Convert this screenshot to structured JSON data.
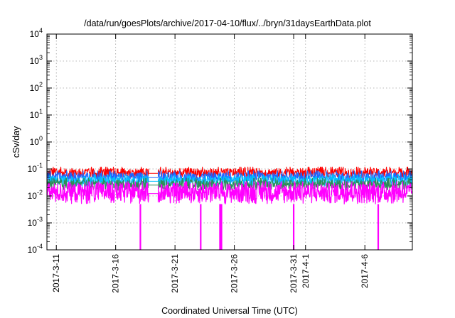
{
  "chart_data": {
    "type": "line",
    "title": "/data/run/goesPlots/archive/2017-04-10/flux/../bryn/31daysEarthData.plot",
    "xlabel": "Coordinated Universal Time (UTC)",
    "ylabel": "cSv/day",
    "y_scale": "log",
    "ylim": [
      0.0001,
      10000
    ],
    "y_ticks": [
      {
        "base": "10",
        "exp": "-4"
      },
      {
        "base": "10",
        "exp": "-3"
      },
      {
        "base": "10",
        "exp": "-2"
      },
      {
        "base": "10",
        "exp": "-1"
      },
      {
        "base": "10",
        "exp": "0"
      },
      {
        "base": "10",
        "exp": "1"
      },
      {
        "base": "10",
        "exp": "2"
      },
      {
        "base": "10",
        "exp": "3"
      },
      {
        "base": "10",
        "exp": "4"
      }
    ],
    "xlim": [
      "2017-03-10T05:00",
      "2017-04-10T00:00"
    ],
    "x_ticks": [
      "2017-3-11",
      "2017-3-16",
      "2017-3-21",
      "2017-3-26",
      "2017-3-31",
      "2017-4-1",
      "2017-4-6"
    ],
    "x_tick_dates": [
      "2017-03-11",
      "2017-03-16",
      "2017-03-21",
      "2017-03-26",
      "2017-03-31",
      "2017-04-01",
      "2017-04-06"
    ],
    "grid": true,
    "data_gap": [
      "2017-03-18T19:00",
      "2017-03-19T14:00"
    ],
    "series": [
      {
        "color": "#ff0000",
        "typical_min": 0.045,
        "typical_max": 0.105
      },
      {
        "color": "#1e64ff",
        "typical_min": 0.03,
        "typical_max": 0.075
      },
      {
        "color": "#00c0ff",
        "typical_min": 0.022,
        "typical_max": 0.055
      },
      {
        "color": "#2e8b57",
        "typical_min": 0.016,
        "typical_max": 0.04
      },
      {
        "color": "#ff00ff",
        "typical_min": 0.005,
        "typical_max": 0.03,
        "dropouts": [
          "2017-03-18T02:00",
          "2017-03-23T04:00",
          "2017-03-24T19:00",
          "2017-03-24T22:00",
          "2017-03-31T00:00",
          "2017-04-07T03:00"
        ]
      }
    ]
  }
}
